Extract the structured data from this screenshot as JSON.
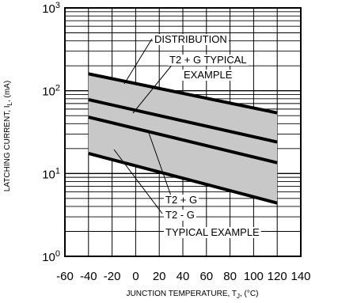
{
  "chart_data": {
    "type": "line",
    "title": "",
    "xlabel": "JUNCTION TEMPERATURE, T",
    "xlabel_sub": "J",
    "xlabel_suffix": ", (°C)",
    "ylabel": "LATCHING CURRENT, I",
    "ylabel_sub": "L",
    "ylabel_suffix": ", (mA)",
    "xlim": [
      -60,
      140
    ],
    "ylim": [
      1,
      1000
    ],
    "yscale": "log",
    "grid": true,
    "x_ticks": [
      -60,
      -40,
      -20,
      0,
      20,
      40,
      60,
      80,
      100,
      120,
      140
    ],
    "y_ticks": [
      {
        "base": "10",
        "exp": "0",
        "value": 1
      },
      {
        "base": "10",
        "exp": "1",
        "value": 10
      },
      {
        "base": "10",
        "exp": "2",
        "value": 100
      },
      {
        "base": "10",
        "exp": "3",
        "value": 1000
      }
    ],
    "band": {
      "x": [
        -40,
        120
      ],
      "upper": [
        160,
        54
      ],
      "lower": [
        17.5,
        4.4
      ],
      "color": "#c8c8c8"
    },
    "series": [
      {
        "x": [
          -40,
          120
        ],
        "y": [
          160,
          54
        ]
      },
      {
        "x": [
          -40,
          120
        ],
        "y": [
          78,
          24
        ]
      },
      {
        "x": [
          -40,
          120
        ],
        "y": [
          48,
          13.5
        ]
      },
      {
        "x": [
          -40,
          120
        ],
        "y": [
          17.5,
          4.4
        ]
      }
    ],
    "annotations": [
      {
        "text": "DISTRIBUTION"
      },
      {
        "text": "T2 + G TYPICAL"
      },
      {
        "text": "EXAMPLE"
      },
      {
        "text": "T2 + G"
      },
      {
        "text": "T2 - G"
      },
      {
        "text": "TYPICAL EXAMPLE"
      }
    ]
  }
}
